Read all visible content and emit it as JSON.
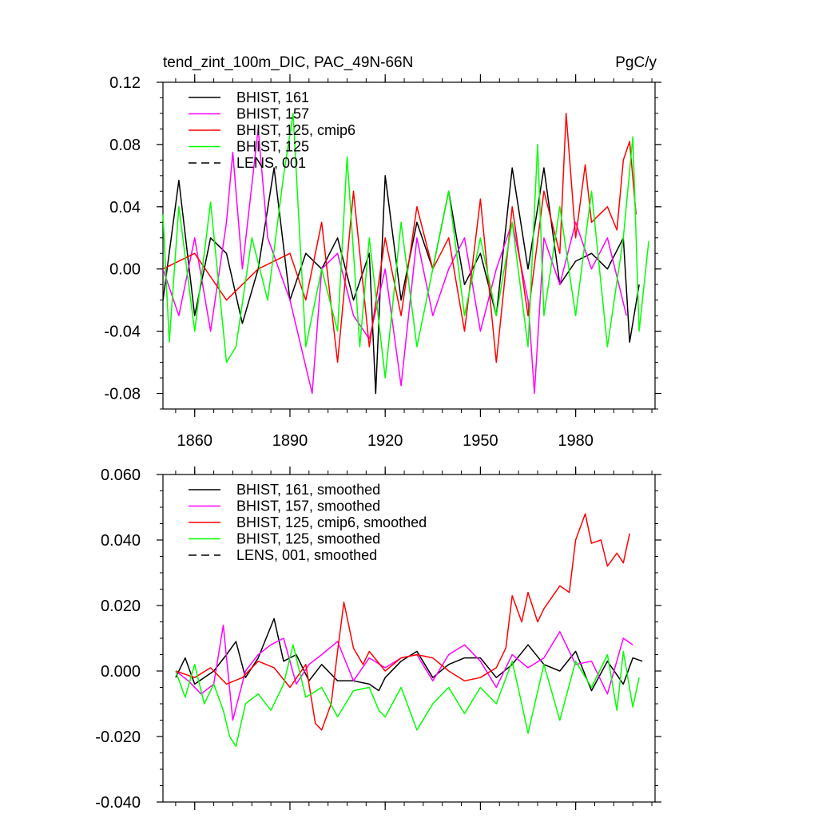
{
  "chart_data": [
    {
      "type": "line",
      "title": "tend_zint_100m_DIC, PAC_49N-66N",
      "units": "PgC/y",
      "xlabel": "",
      "ylabel": "",
      "xlim": [
        1850,
        2005
      ],
      "ylim": [
        -0.09,
        0.12
      ],
      "x_ticks": [
        1860,
        1890,
        1920,
        1950,
        1980
      ],
      "y_ticks": [
        -0.08,
        -0.04,
        0.0,
        0.04,
        0.08,
        0.12
      ],
      "y_tick_labels": [
        "-0.08",
        "-0.04",
        "0.00",
        "0.04",
        "0.08",
        "0.12"
      ],
      "legend_position": "top-left",
      "series": [
        {
          "name": "BHIST, 161",
          "color": "#000000",
          "dash": "solid",
          "x": [
            1850,
            1855,
            1860,
            1865,
            1870,
            1875,
            1880,
            1885,
            1890,
            1895,
            1900,
            1905,
            1910,
            1915,
            1917,
            1920,
            1925,
            1930,
            1935,
            1940,
            1945,
            1950,
            1955,
            1960,
            1965,
            1970,
            1975,
            1980,
            1985,
            1990,
            1995,
            1997,
            2000
          ],
          "values": [
            -0.02,
            0.057,
            -0.03,
            0.02,
            0.01,
            -0.035,
            0.0,
            0.065,
            -0.02,
            0.01,
            0.0,
            0.02,
            -0.02,
            0.01,
            -0.08,
            0.06,
            -0.02,
            0.03,
            0.0,
            0.05,
            -0.01,
            0.01,
            -0.03,
            0.065,
            0.0,
            0.065,
            -0.01,
            0.005,
            0.01,
            0.0,
            0.02,
            -0.047,
            -0.01
          ]
        },
        {
          "name": "BHIST, 157",
          "color": "#ff00ff",
          "dash": "solid",
          "x": [
            1850,
            1855,
            1860,
            1865,
            1870,
            1872,
            1875,
            1880,
            1883,
            1890,
            1897,
            1900,
            1905,
            1910,
            1915,
            1920,
            1925,
            1930,
            1935,
            1940,
            1945,
            1950,
            1955,
            1960,
            1965,
            1967,
            1970,
            1975,
            1980,
            1985,
            1990,
            1996
          ],
          "values": [
            0.0,
            -0.03,
            0.02,
            -0.04,
            0.03,
            0.075,
            0.0,
            0.09,
            0.02,
            -0.02,
            -0.08,
            0.0,
            0.01,
            -0.03,
            -0.045,
            0.0,
            -0.075,
            0.02,
            -0.03,
            0.0,
            0.02,
            -0.04,
            0.0,
            0.03,
            -0.02,
            -0.08,
            0.02,
            -0.01,
            0.03,
            0.0,
            0.02,
            -0.03
          ]
        },
        {
          "name": "BHIST, 125, cmip6",
          "color": "#ff0000",
          "dash": "solid",
          "x": [
            1850,
            1860,
            1870,
            1880,
            1890,
            1895,
            1900,
            1905,
            1910,
            1915,
            1920,
            1925,
            1930,
            1935,
            1940,
            1945,
            1950,
            1955,
            1960,
            1965,
            1970,
            1975,
            1977,
            1980,
            1983,
            1985,
            1990,
            1993,
            1995,
            1997,
            1999
          ],
          "values": [
            0.0,
            0.01,
            -0.02,
            0.0,
            0.01,
            -0.02,
            0.03,
            -0.06,
            0.05,
            -0.05,
            0.02,
            -0.03,
            0.04,
            0.0,
            0.02,
            -0.04,
            0.045,
            -0.06,
            0.04,
            -0.03,
            0.05,
            0.01,
            0.1,
            0.02,
            0.067,
            0.03,
            0.04,
            0.025,
            0.07,
            0.082,
            0.035
          ]
        },
        {
          "name": "BHIST, 125",
          "color": "#00ff00",
          "dash": "solid",
          "x": [
            1850,
            1852,
            1855,
            1860,
            1865,
            1870,
            1873,
            1878,
            1883,
            1888,
            1891,
            1895,
            1900,
            1905,
            1908,
            1912,
            1915,
            1920,
            1925,
            1930,
            1935,
            1940,
            1945,
            1950,
            1955,
            1960,
            1965,
            1968,
            1970,
            1975,
            1980,
            1985,
            1990,
            1995,
            1998,
            2000,
            2003
          ],
          "values": [
            0.035,
            -0.047,
            0.04,
            -0.04,
            0.043,
            -0.06,
            -0.05,
            0.02,
            -0.02,
            0.06,
            0.1,
            -0.05,
            0.0,
            -0.04,
            0.072,
            -0.05,
            0.02,
            -0.07,
            0.03,
            -0.05,
            0.0,
            0.05,
            -0.03,
            0.02,
            -0.03,
            0.03,
            -0.05,
            0.08,
            -0.03,
            0.04,
            -0.03,
            0.05,
            -0.05,
            0.02,
            0.085,
            -0.04,
            0.018
          ]
        },
        {
          "name": "LENS, 001",
          "color": "#000000",
          "dash": "dashed",
          "x": [],
          "values": []
        }
      ]
    },
    {
      "type": "line",
      "title": "",
      "xlabel": "",
      "ylabel": "",
      "xlim": [
        1850,
        2005
      ],
      "ylim": [
        -0.04,
        0.06
      ],
      "x_ticks": [
        1860,
        1890,
        1920,
        1950,
        1980
      ],
      "y_ticks": [
        -0.04,
        -0.02,
        0.0,
        0.02,
        0.04,
        0.06
      ],
      "y_tick_labels": [
        "-0.040",
        "-0.020",
        "0.000",
        "0.020",
        "0.040",
        "0.060"
      ],
      "legend_position": "top-left",
      "series": [
        {
          "name": "BHIST, 161, smoothed",
          "color": "#000000",
          "dash": "solid",
          "x": [
            1854,
            1857,
            1860,
            1863,
            1866,
            1870,
            1873,
            1876,
            1880,
            1885,
            1888,
            1892,
            1896,
            1900,
            1905,
            1910,
            1915,
            1918,
            1920,
            1925,
            1930,
            1935,
            1940,
            1945,
            1950,
            1955,
            1960,
            1965,
            1970,
            1975,
            1980,
            1985,
            1990,
            1995,
            1998,
            2001
          ],
          "values": [
            -0.002,
            0.004,
            -0.004,
            -0.002,
            0.0,
            0.005,
            0.009,
            -0.002,
            0.004,
            0.016,
            0.003,
            0.005,
            -0.003,
            0.002,
            -0.003,
            -0.003,
            -0.004,
            -0.006,
            -0.002,
            0.003,
            0.006,
            -0.002,
            0.002,
            0.004,
            0.004,
            -0.002,
            0.002,
            0.008,
            0.002,
            0.0,
            0.006,
            -0.006,
            0.003,
            -0.004,
            0.004,
            0.003
          ]
        },
        {
          "name": "BHIST, 157, smoothed",
          "color": "#ff00ff",
          "dash": "solid",
          "x": [
            1854,
            1858,
            1862,
            1866,
            1869,
            1872,
            1876,
            1880,
            1884,
            1888,
            1892,
            1896,
            1900,
            1905,
            1910,
            1915,
            1920,
            1925,
            1930,
            1935,
            1940,
            1945,
            1950,
            1955,
            1960,
            1965,
            1970,
            1975,
            1980,
            1985,
            1990,
            1995,
            1998
          ],
          "values": [
            0.0,
            -0.003,
            -0.007,
            -0.004,
            0.014,
            -0.015,
            0.0,
            0.005,
            0.008,
            0.01,
            -0.004,
            0.002,
            0.005,
            0.009,
            -0.003,
            0.004,
            0.001,
            0.004,
            0.005,
            -0.003,
            0.005,
            0.008,
            0.003,
            -0.005,
            0.005,
            0.001,
            0.004,
            0.012,
            0.002,
            0.003,
            -0.007,
            0.01,
            0.008
          ]
        },
        {
          "name": "BHIST, 125, cmip6, smoothed",
          "color": "#ff0000",
          "dash": "solid",
          "x": [
            1854,
            1860,
            1865,
            1870,
            1875,
            1880,
            1885,
            1890,
            1895,
            1898,
            1900,
            1903,
            1905,
            1907,
            1910,
            1913,
            1915,
            1920,
            1925,
            1930,
            1935,
            1940,
            1945,
            1950,
            1955,
            1958,
            1960,
            1963,
            1965,
            1968,
            1970,
            1975,
            1978,
            1980,
            1983,
            1985,
            1988,
            1990,
            1993,
            1995,
            1997
          ],
          "values": [
            0.0,
            -0.002,
            0.001,
            -0.004,
            -0.002,
            0.003,
            0.001,
            -0.005,
            0.002,
            -0.016,
            -0.018,
            -0.01,
            0.006,
            0.021,
            0.007,
            0.002,
            0.006,
            0.0,
            0.004,
            0.005,
            0.004,
            0.0,
            -0.003,
            -0.002,
            0.001,
            0.007,
            0.023,
            0.015,
            0.024,
            0.015,
            0.019,
            0.026,
            0.024,
            0.04,
            0.048,
            0.039,
            0.04,
            0.032,
            0.036,
            0.033,
            0.042
          ]
        },
        {
          "name": "BHIST, 125, smoothed",
          "color": "#00ff00",
          "dash": "solid",
          "x": [
            1854,
            1857,
            1860,
            1863,
            1866,
            1869,
            1871,
            1873,
            1876,
            1880,
            1884,
            1888,
            1891,
            1895,
            1900,
            1905,
            1910,
            1915,
            1918,
            1920,
            1925,
            1930,
            1935,
            1940,
            1945,
            1950,
            1955,
            1960,
            1963,
            1965,
            1970,
            1975,
            1980,
            1985,
            1990,
            1993,
            1995,
            1998,
            2000
          ],
          "values": [
            0.0,
            -0.008,
            0.002,
            -0.01,
            -0.004,
            -0.012,
            -0.02,
            -0.023,
            -0.01,
            -0.007,
            -0.012,
            -0.004,
            0.008,
            -0.008,
            -0.005,
            -0.014,
            -0.006,
            -0.005,
            -0.012,
            -0.014,
            -0.005,
            -0.018,
            -0.01,
            -0.005,
            -0.013,
            -0.005,
            -0.01,
            0.003,
            -0.01,
            -0.019,
            0.002,
            -0.015,
            0.003,
            -0.005,
            0.005,
            -0.012,
            0.006,
            -0.011,
            -0.002
          ]
        },
        {
          "name": "LENS, 001, smoothed",
          "color": "#000000",
          "dash": "dashed",
          "x": [],
          "values": []
        }
      ]
    }
  ]
}
